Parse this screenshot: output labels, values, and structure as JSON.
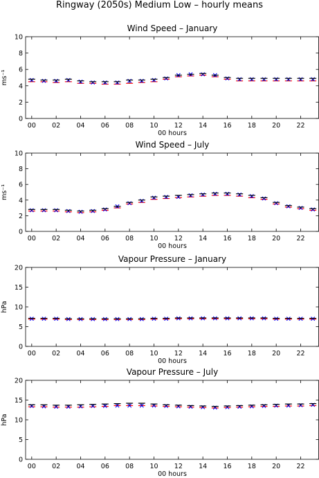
{
  "figure": {
    "title": "Ringway (2050s) Medium Low – hourly means"
  },
  "chart_data": [
    {
      "type": "scatter",
      "title": "Wind Speed – January",
      "xlabel": "00 hours",
      "ylabel": "ms⁻¹",
      "xlim": [
        -0.5,
        23.5
      ],
      "ylim": [
        0,
        10
      ],
      "x_ticks": [
        0,
        2,
        4,
        6,
        8,
        10,
        12,
        14,
        16,
        18,
        20,
        22
      ],
      "x_tick_labels": [
        "00",
        "02",
        "04",
        "06",
        "08",
        "10",
        "12",
        "14",
        "16",
        "18",
        "20",
        "22"
      ],
      "y_ticks": [
        0,
        2,
        4,
        6,
        8,
        10
      ],
      "y_tick_labels": [
        "0",
        "2",
        "4",
        "6",
        "8",
        "10"
      ],
      "x": [
        0,
        1,
        2,
        3,
        4,
        5,
        6,
        7,
        8,
        9,
        10,
        11,
        12,
        13,
        14,
        15,
        16,
        17,
        18,
        19,
        20,
        21,
        22,
        23
      ],
      "series": [
        {
          "color": "#ff0000",
          "marker": "bar",
          "values": [
            4.5,
            4.5,
            4.4,
            4.5,
            4.3,
            4.3,
            4.2,
            4.2,
            4.3,
            4.4,
            4.5,
            4.8,
            5.1,
            5.2,
            5.3,
            5.1,
            4.8,
            4.6,
            4.6,
            4.6,
            4.6,
            4.6,
            4.6,
            4.6
          ]
        },
        {
          "color": "#0000ff",
          "marker": "x",
          "values": [
            4.7,
            4.6,
            4.6,
            4.7,
            4.5,
            4.4,
            4.4,
            4.4,
            4.6,
            4.6,
            4.7,
            4.9,
            5.3,
            5.4,
            5.4,
            5.3,
            4.9,
            4.8,
            4.8,
            4.8,
            4.8,
            4.8,
            4.8,
            4.8
          ]
        },
        {
          "color": "#000000",
          "marker": "bar",
          "values": [
            4.8,
            4.7,
            4.7,
            4.8,
            4.6,
            4.5,
            4.5,
            4.5,
            4.7,
            4.7,
            4.8,
            5.0,
            5.3,
            5.4,
            5.5,
            5.3,
            5.0,
            4.9,
            4.9,
            4.9,
            4.9,
            4.9,
            4.9,
            4.9
          ]
        }
      ]
    },
    {
      "type": "scatter",
      "title": "Wind Speed – July",
      "xlabel": "00 hours",
      "ylabel": "ms⁻¹",
      "xlim": [
        -0.5,
        23.5
      ],
      "ylim": [
        0,
        10
      ],
      "x_ticks": [
        0,
        2,
        4,
        6,
        8,
        10,
        12,
        14,
        16,
        18,
        20,
        22
      ],
      "x_tick_labels": [
        "00",
        "02",
        "04",
        "06",
        "08",
        "10",
        "12",
        "14",
        "16",
        "18",
        "20",
        "22"
      ],
      "y_ticks": [
        0,
        2,
        4,
        6,
        8,
        10
      ],
      "y_tick_labels": [
        "0",
        "2",
        "4",
        "6",
        "8",
        "10"
      ],
      "x": [
        0,
        1,
        2,
        3,
        4,
        5,
        6,
        7,
        8,
        9,
        10,
        11,
        12,
        13,
        14,
        15,
        16,
        17,
        18,
        19,
        20,
        21,
        22,
        23
      ],
      "series": [
        {
          "color": "#ff0000",
          "marker": "bar",
          "values": [
            2.6,
            2.6,
            2.6,
            2.5,
            2.4,
            2.5,
            2.7,
            3.0,
            3.5,
            3.7,
            4.1,
            4.2,
            4.3,
            4.4,
            4.5,
            4.6,
            4.6,
            4.5,
            4.3,
            4.1,
            3.5,
            3.1,
            2.9,
            2.7
          ]
        },
        {
          "color": "#0000ff",
          "marker": "x",
          "values": [
            2.7,
            2.7,
            2.7,
            2.6,
            2.5,
            2.6,
            2.8,
            3.2,
            3.6,
            3.9,
            4.3,
            4.4,
            4.4,
            4.6,
            4.7,
            4.8,
            4.8,
            4.7,
            4.5,
            4.2,
            3.6,
            3.2,
            3.0,
            2.8
          ]
        },
        {
          "color": "#000000",
          "marker": "bar",
          "values": [
            2.8,
            2.8,
            2.8,
            2.7,
            2.6,
            2.7,
            2.9,
            3.2,
            3.7,
            4.0,
            4.4,
            4.5,
            4.6,
            4.7,
            4.8,
            4.9,
            4.9,
            4.8,
            4.6,
            4.3,
            3.7,
            3.3,
            3.1,
            2.9
          ]
        }
      ]
    },
    {
      "type": "scatter",
      "title": "Vapour Pressure – January",
      "xlabel": "00 hours",
      "ylabel": "hPa",
      "xlim": [
        -0.5,
        23.5
      ],
      "ylim": [
        0,
        20
      ],
      "x_ticks": [
        0,
        2,
        4,
        6,
        8,
        10,
        12,
        14,
        16,
        18,
        20,
        22
      ],
      "x_tick_labels": [
        "00",
        "02",
        "04",
        "06",
        "08",
        "10",
        "12",
        "14",
        "16",
        "18",
        "20",
        "22"
      ],
      "y_ticks": [
        0,
        5,
        10,
        15,
        20
      ],
      "y_tick_labels": [
        "0",
        "5",
        "10",
        "15",
        "20"
      ],
      "x": [
        0,
        1,
        2,
        3,
        4,
        5,
        6,
        7,
        8,
        9,
        10,
        11,
        12,
        13,
        14,
        15,
        16,
        17,
        18,
        19,
        20,
        21,
        22,
        23
      ],
      "series": [
        {
          "color": "#ff0000",
          "marker": "bar",
          "values": [
            6.9,
            6.9,
            6.9,
            6.8,
            6.8,
            6.8,
            6.8,
            6.8,
            6.8,
            6.8,
            6.9,
            6.9,
            7.0,
            7.0,
            7.0,
            7.0,
            7.0,
            7.0,
            7.0,
            7.0,
            6.9,
            6.9,
            6.9,
            6.9
          ]
        },
        {
          "color": "#0000ff",
          "marker": "x",
          "values": [
            7.0,
            7.0,
            7.0,
            6.9,
            6.9,
            6.9,
            6.9,
            6.9,
            6.9,
            6.9,
            7.0,
            7.0,
            7.1,
            7.1,
            7.1,
            7.1,
            7.1,
            7.1,
            7.1,
            7.1,
            7.0,
            7.0,
            7.0,
            7.0
          ]
        },
        {
          "color": "#000000",
          "marker": "bar",
          "values": [
            7.1,
            7.1,
            7.1,
            7.0,
            7.0,
            7.0,
            7.0,
            7.0,
            7.0,
            7.0,
            7.1,
            7.1,
            7.2,
            7.2,
            7.2,
            7.2,
            7.2,
            7.2,
            7.2,
            7.2,
            7.1,
            7.1,
            7.1,
            7.1
          ]
        }
      ]
    },
    {
      "type": "scatter",
      "title": "Vapour Pressure – July",
      "xlabel": "00 hours",
      "ylabel": "hPa",
      "xlim": [
        -0.5,
        23.5
      ],
      "ylim": [
        0,
        20
      ],
      "x_ticks": [
        0,
        2,
        4,
        6,
        8,
        10,
        12,
        14,
        16,
        18,
        20,
        22
      ],
      "x_tick_labels": [
        "00",
        "02",
        "04",
        "06",
        "08",
        "10",
        "12",
        "14",
        "16",
        "18",
        "20",
        "22"
      ],
      "y_ticks": [
        0,
        5,
        10,
        15,
        20
      ],
      "y_tick_labels": [
        "0",
        "5",
        "10",
        "15",
        "20"
      ],
      "x": [
        0,
        1,
        2,
        3,
        4,
        5,
        6,
        7,
        8,
        9,
        10,
        11,
        12,
        13,
        14,
        15,
        16,
        17,
        18,
        19,
        20,
        21,
        22,
        23
      ],
      "series": [
        {
          "color": "#ff0000",
          "marker": "bar",
          "values": [
            13.3,
            13.3,
            13.2,
            13.2,
            13.2,
            13.3,
            13.4,
            13.6,
            13.6,
            13.6,
            13.5,
            13.4,
            13.3,
            13.2,
            13.1,
            13.0,
            13.1,
            13.2,
            13.3,
            13.4,
            13.4,
            13.5,
            13.5,
            13.6
          ]
        },
        {
          "color": "#0000ff",
          "marker": "x",
          "values": [
            13.5,
            13.4,
            13.3,
            13.3,
            13.4,
            13.5,
            13.5,
            13.6,
            13.6,
            13.6,
            13.6,
            13.5,
            13.4,
            13.3,
            13.2,
            13.1,
            13.2,
            13.3,
            13.4,
            13.5,
            13.6,
            13.6,
            13.7,
            13.8
          ]
        },
        {
          "color": "#000000",
          "marker": "bar",
          "values": [
            13.8,
            13.8,
            13.7,
            13.7,
            13.8,
            13.9,
            14.0,
            14.1,
            14.2,
            14.2,
            14.0,
            13.8,
            13.7,
            13.6,
            13.5,
            13.4,
            13.5,
            13.6,
            13.7,
            13.8,
            13.9,
            14.0,
            14.0,
            14.1
          ]
        }
      ]
    }
  ]
}
